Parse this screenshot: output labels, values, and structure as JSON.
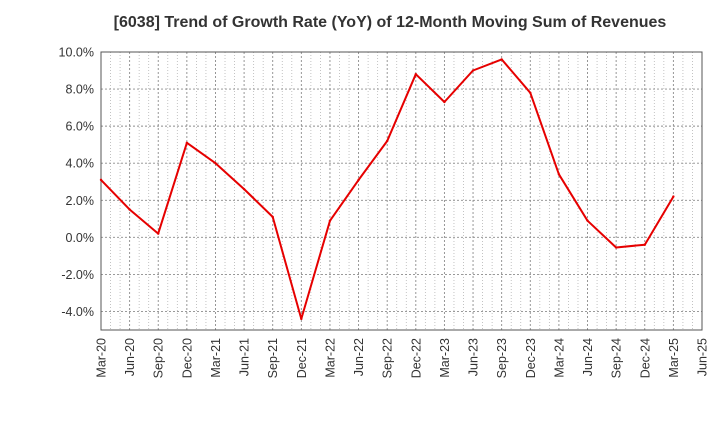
{
  "chart_data": {
    "type": "line",
    "title": "[6038]  Trend of Growth Rate (YoY) of 12-Month Moving Sum of Revenues",
    "xlabel": "",
    "ylabel": "",
    "categories": [
      "Mar-20",
      "Jun-20",
      "Sep-20",
      "Dec-20",
      "Mar-21",
      "Jun-21",
      "Sep-21",
      "Dec-21",
      "Mar-22",
      "Jun-22",
      "Sep-22",
      "Dec-22",
      "Mar-23",
      "Jun-23",
      "Sep-23",
      "Dec-23",
      "Mar-24",
      "Jun-24",
      "Sep-24",
      "Dec-24",
      "Mar-25",
      "Jun-25"
    ],
    "x_tick_labels": [
      "Mar-20",
      "Jun-20",
      "Sep-20",
      "Dec-20",
      "Mar-21",
      "Jun-21",
      "Sep-21",
      "Dec-21",
      "Mar-22",
      "Jun-22",
      "Sep-22",
      "Dec-22",
      "Mar-23",
      "Jun-23",
      "Sep-23",
      "Dec-23",
      "Mar-24",
      "Jun-24",
      "Sep-24",
      "Dec-24",
      "Mar-25",
      "Jun-25"
    ],
    "y_tick_labels": [
      "10.0%",
      "8.0%",
      "6.0%",
      "4.0%",
      "2.0%",
      "0.0%",
      "-2.0%",
      "-4.0%"
    ],
    "y_ticks": [
      10,
      8,
      6,
      4,
      2,
      0,
      -2,
      -4
    ],
    "ylim": [
      -5,
      10
    ],
    "y_unit": "%",
    "grid": true,
    "series": [
      {
        "color": "#e60000",
        "values": [
          3.1,
          1.5,
          0.2,
          5.1,
          4.0,
          2.6,
          1.1,
          -4.4,
          0.9,
          3.1,
          5.2,
          8.8,
          7.3,
          9.0,
          9.6,
          7.8,
          3.4,
          0.9,
          -0.55,
          -0.4,
          2.2,
          null
        ]
      }
    ]
  }
}
